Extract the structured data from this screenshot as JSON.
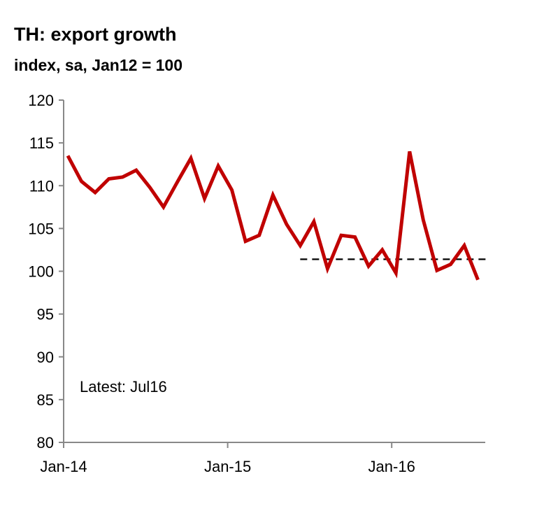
{
  "chart_data": {
    "type": "line",
    "title": "TH: export growth",
    "subtitle": "index, sa, Jan12 = 100",
    "xlabel": "",
    "ylabel": "",
    "ylim": [
      80,
      120
    ],
    "yticks": [
      80,
      85,
      90,
      95,
      100,
      105,
      110,
      115,
      120
    ],
    "xtick_labels": [
      "Jan-14",
      "Jan-15",
      "Jan-16"
    ],
    "x": [
      "Jan-14",
      "Feb-14",
      "Mar-14",
      "Apr-14",
      "May-14",
      "Jun-14",
      "Jul-14",
      "Aug-14",
      "Sep-14",
      "Oct-14",
      "Nov-14",
      "Dec-14",
      "Jan-15",
      "Feb-15",
      "Mar-15",
      "Apr-15",
      "May-15",
      "Jun-15",
      "Jul-15",
      "Aug-15",
      "Sep-15",
      "Oct-15",
      "Nov-15",
      "Dec-15",
      "Jan-16",
      "Feb-16",
      "Mar-16",
      "Apr-16",
      "May-16",
      "Jun-16",
      "Jul-16"
    ],
    "series": [
      {
        "color": "#c00000",
        "values": [
          113.5,
          110.5,
          109.2,
          110.8,
          111.0,
          111.8,
          109.8,
          107.5,
          110.4,
          113.2,
          108.5,
          112.3,
          109.5,
          103.5,
          104.2,
          108.9,
          105.5,
          103.0,
          105.8,
          100.3,
          104.2,
          104.0,
          100.6,
          102.5,
          99.8,
          114.0,
          106.0,
          100.1,
          100.8,
          103.0,
          99.0
        ]
      }
    ],
    "reference_line": {
      "style": "dashed",
      "color": "#000000",
      "value": 101.4,
      "from": "Jun-15",
      "to": "Jul-16"
    },
    "annotation": "Latest:  Jul16",
    "grid": false,
    "legend": "none"
  }
}
